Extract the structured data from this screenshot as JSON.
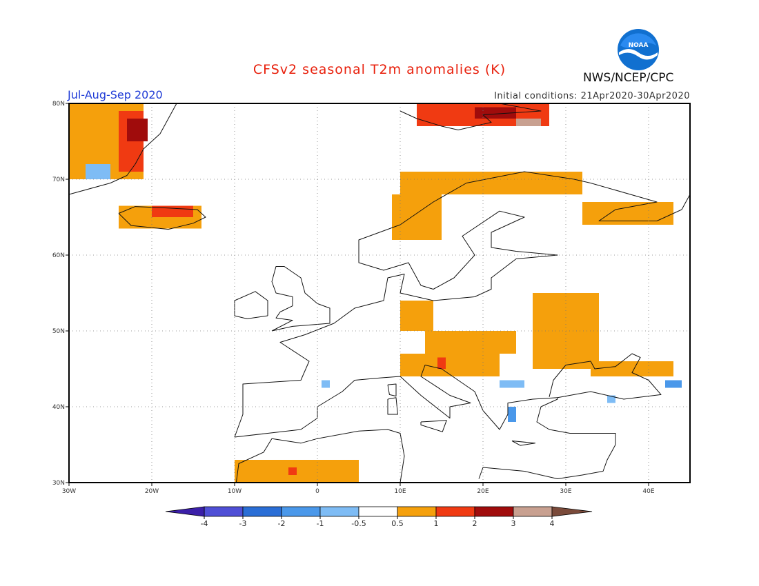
{
  "header": {
    "title": "CFSv2 seasonal T2m anomalies (K)",
    "season": "Jul-Aug-Sep 2020",
    "initial_conditions": "Initial conditions: 21Apr2020-30Apr2020",
    "agency": "NWS/NCEP/CPC",
    "logo_text": "NOAA"
  },
  "map": {
    "lon_range": [
      -30,
      45
    ],
    "lat_range": [
      30,
      80
    ],
    "lon_ticks": [
      {
        "v": -30,
        "label": "30W"
      },
      {
        "v": -20,
        "label": "20W"
      },
      {
        "v": -10,
        "label": "10W"
      },
      {
        "v": 0,
        "label": "0"
      },
      {
        "v": 10,
        "label": "10E"
      },
      {
        "v": 20,
        "label": "20E"
      },
      {
        "v": 30,
        "label": "30E"
      },
      {
        "v": 40,
        "label": "40E"
      }
    ],
    "lat_ticks": [
      {
        "v": 30,
        "label": "30N"
      },
      {
        "v": 40,
        "label": "40N"
      },
      {
        "v": 50,
        "label": "50N"
      },
      {
        "v": 60,
        "label": "60N"
      },
      {
        "v": 70,
        "label": "70N"
      },
      {
        "v": 80,
        "label": "80N"
      }
    ],
    "colors": {
      "n4": "#3b1fa8",
      "n3": "#4f4fd6",
      "n2": "#2a6ed6",
      "n1": "#4a98ea",
      "n05": "#7ebcf5",
      "zero": "#ffffff",
      "p05": "#f5a00c",
      "p1": "#f03a12",
      "p2": "#a00c0c",
      "p3": "#c8a090",
      "p4": "#7a4a3a"
    },
    "anomaly_regions": [
      {
        "name": "greenland-east",
        "cat": "p05",
        "lon": [
          -30,
          -21
        ],
        "lat": [
          70,
          80
        ]
      },
      {
        "name": "greenland-hot",
        "cat": "p1",
        "lon": [
          -24,
          -21
        ],
        "lat": [
          71,
          79
        ]
      },
      {
        "name": "greenland-veryhot",
        "cat": "p2",
        "lon": [
          -23,
          -20.5
        ],
        "lat": [
          75,
          78
        ]
      },
      {
        "name": "iceland",
        "cat": "p05",
        "lon": [
          -24,
          -14
        ],
        "lat": [
          63.5,
          66.5
        ]
      },
      {
        "name": "iceland-hot",
        "cat": "p1",
        "lon": [
          -20,
          -15
        ],
        "lat": [
          65,
          66.5
        ]
      },
      {
        "name": "svalbard",
        "cat": "p1",
        "lon": [
          12,
          28
        ],
        "lat": [
          77,
          80
        ]
      },
      {
        "name": "svalbard-hot",
        "cat": "p2",
        "lon": [
          19,
          24
        ],
        "lat": [
          78,
          79.5
        ]
      },
      {
        "name": "svalbard-east",
        "cat": "p3",
        "lon": [
          24,
          27
        ],
        "lat": [
          77,
          78
        ]
      },
      {
        "name": "norway-coast",
        "cat": "p05",
        "lon": [
          10,
          32
        ],
        "lat": [
          68,
          71
        ]
      },
      {
        "name": "norway-west",
        "cat": "p05",
        "lon": [
          9,
          15
        ],
        "lat": [
          62,
          68
        ]
      },
      {
        "name": "kola",
        "cat": "p05",
        "lon": [
          32,
          43
        ],
        "lat": [
          64,
          67
        ]
      },
      {
        "name": "germany",
        "cat": "p05",
        "lon": [
          10,
          14
        ],
        "lat": [
          50,
          54
        ]
      },
      {
        "name": "central-europe",
        "cat": "p05",
        "lon": [
          13,
          24
        ],
        "lat": [
          47,
          50
        ]
      },
      {
        "name": "alps",
        "cat": "p05",
        "lon": [
          10,
          22
        ],
        "lat": [
          44,
          47
        ]
      },
      {
        "name": "alps-hot",
        "cat": "p1",
        "lon": [
          14.5,
          15.5
        ],
        "lat": [
          45,
          46.5
        ]
      },
      {
        "name": "ukraine",
        "cat": "p05",
        "lon": [
          26,
          34
        ],
        "lat": [
          45,
          55
        ]
      },
      {
        "name": "black-sea-east",
        "cat": "p05",
        "lon": [
          33,
          43
        ],
        "lat": [
          44,
          46
        ]
      },
      {
        "name": "morocco",
        "cat": "p05",
        "lon": [
          -10,
          5
        ],
        "lat": [
          30,
          33
        ]
      },
      {
        "name": "morocco-hot",
        "cat": "p1",
        "lon": [
          -3.5,
          -2.5
        ],
        "lat": [
          31,
          32
        ]
      },
      {
        "name": "greenland-cold",
        "cat": "n05",
        "lon": [
          -28,
          -25
        ],
        "lat": [
          70,
          72
        ]
      },
      {
        "name": "balkan-cold",
        "cat": "n05",
        "lon": [
          22,
          25
        ],
        "lat": [
          42.5,
          43.5
        ]
      },
      {
        "name": "aegean-cold",
        "cat": "n1",
        "lon": [
          23,
          24
        ],
        "lat": [
          38,
          40
        ]
      },
      {
        "name": "turkey-cold",
        "cat": "n05",
        "lon": [
          35,
          36
        ],
        "lat": [
          40.5,
          41.5
        ]
      },
      {
        "name": "caucasus-cold",
        "cat": "n1",
        "lon": [
          42,
          44
        ],
        "lat": [
          42.5,
          43.5
        ]
      },
      {
        "name": "spain-cold",
        "cat": "n05",
        "lon": [
          0.5,
          1.5
        ],
        "lat": [
          42.5,
          43.5
        ]
      }
    ]
  },
  "colorbar": {
    "labels": [
      "-4",
      "-3",
      "-2",
      "-1",
      "-0.5",
      "0.5",
      "1",
      "2",
      "3",
      "4"
    ],
    "segments": [
      "n3",
      "n2",
      "n1",
      "n05",
      "zero",
      "p05",
      "p1",
      "p2",
      "p3"
    ],
    "ends": [
      "n4",
      "p4"
    ]
  }
}
